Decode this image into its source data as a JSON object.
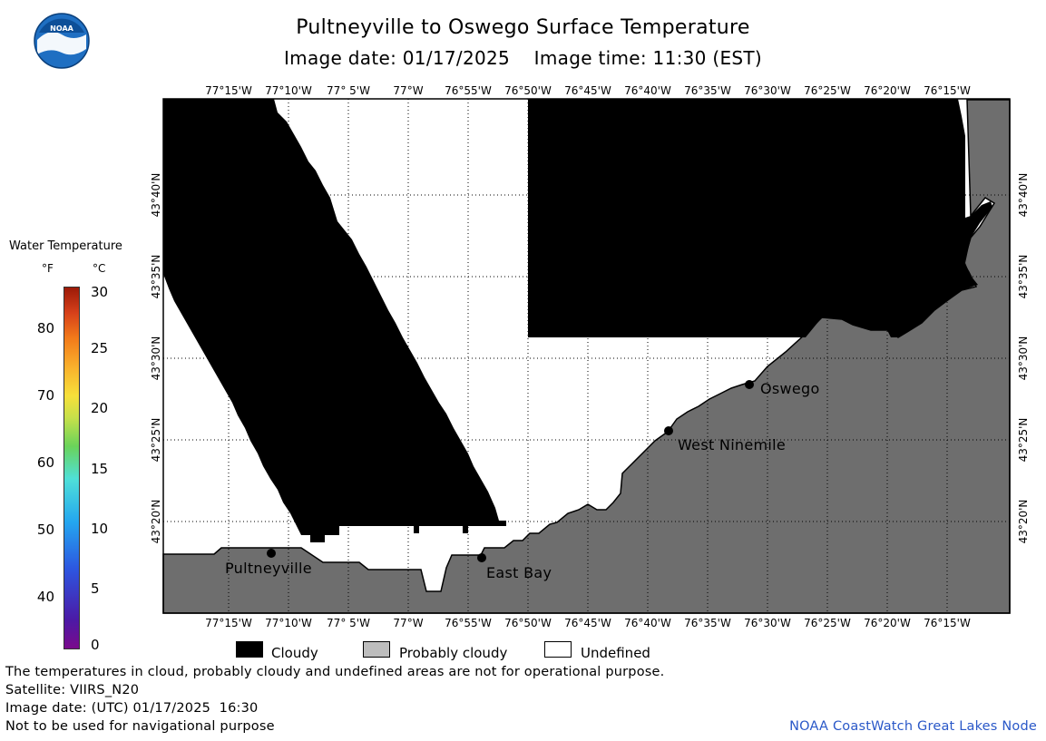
{
  "header": {
    "title": "Pultneyville to Oswego Surface Temperature",
    "subtitle": "Image date: 01/17/2025    Image time: 11:30 (EST)",
    "logo_text": "NOAA"
  },
  "map": {
    "longitude_labels": [
      "77°15'W",
      "77°10'W",
      "77° 5'W",
      "77°W",
      "76°55'W",
      "76°50'W",
      "76°45'W",
      "76°40'W",
      "76°35'W",
      "76°30'W",
      "76°25'W",
      "76°20'W",
      "76°15'W"
    ],
    "latitude_labels": [
      "43°40'N",
      "43°35'N",
      "43°30'N",
      "43°25'N",
      "43°20'N"
    ],
    "places": [
      {
        "name": "Pultneyville"
      },
      {
        "name": "East Bay"
      },
      {
        "name": "West Ninemile"
      },
      {
        "name": "Oswego"
      }
    ],
    "colors": {
      "cloudy": "#000000",
      "land": "#6e6e6e",
      "undefined": "#ffffff",
      "grid": "#000000"
    }
  },
  "legend": {
    "title": "Water Temperature",
    "unit_f": "°F",
    "unit_c": "°C",
    "f_ticks": [
      "80",
      "70",
      "60",
      "50",
      "40"
    ],
    "c_ticks": [
      "30",
      "25",
      "20",
      "15",
      "10",
      "5",
      "0"
    ],
    "categories": [
      {
        "label": "Cloudy",
        "color": "#000000"
      },
      {
        "label": "Probably cloudy",
        "color": "#bdbdbd"
      },
      {
        "label": "Undefined",
        "color": "#ffffff"
      }
    ]
  },
  "footer": {
    "note": "The temperatures in cloud, probably cloudy and undefined areas are not for operational purpose.",
    "satellite": "Satellite: VIIRS_N20",
    "utc_date": "Image date: (UTC) 01/17/2025  16:30",
    "nav_warning": "Not to be used for navigational purpose",
    "credit": "NOAA CoastWatch Great Lakes Node"
  }
}
